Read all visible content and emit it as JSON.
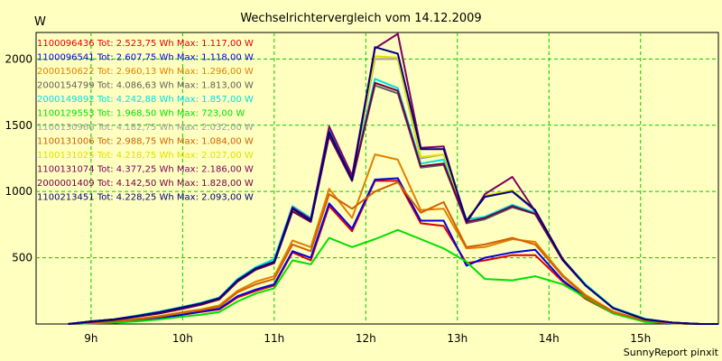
{
  "chart_data": {
    "type": "line",
    "title": "Wechselrichtervergleich vom 14.12.2009",
    "ylabel": "W",
    "xlabel": "",
    "footer": "SunnyReport pinxit",
    "x_range": [
      8.4,
      15.85
    ],
    "ylim": [
      0,
      2200
    ],
    "y_ticks": [
      500,
      1000,
      1500,
      2000
    ],
    "x_ticks": [
      "9h",
      "10h",
      "11h",
      "12h",
      "13h",
      "14h",
      "15h"
    ],
    "x_tick_values": [
      9,
      10,
      11,
      12,
      13,
      14,
      15
    ],
    "grid": true,
    "legend_position": "top-left",
    "x": [
      8.75,
      9.0,
      9.25,
      9.5,
      9.75,
      10.0,
      10.2,
      10.4,
      10.6,
      10.8,
      11.0,
      11.2,
      11.4,
      11.6,
      11.85,
      12.1,
      12.35,
      12.6,
      12.85,
      13.1,
      13.3,
      13.6,
      13.85,
      14.15,
      14.4,
      14.7,
      15.05,
      15.35,
      15.65,
      15.85
    ],
    "series": [
      {
        "name": "1100096436",
        "text": "Tot: 2.523,75 Wh Max: 1.117,00 W",
        "color": "#e00000",
        "values": [
          0,
          5,
          10,
          25,
          45,
          70,
          90,
          110,
          200,
          250,
          290,
          540,
          480,
          890,
          700,
          1080,
          1080,
          760,
          740,
          460,
          480,
          520,
          520,
          320,
          190,
          80,
          20,
          5,
          0,
          0
        ]
      },
      {
        "name": "1100096541",
        "text": "Tot: 2.607,75 Wh Max: 1.118,00 W",
        "color": "#0000e0",
        "values": [
          0,
          5,
          10,
          25,
          45,
          70,
          95,
          115,
          210,
          260,
          300,
          550,
          500,
          910,
          720,
          1090,
          1100,
          780,
          780,
          440,
          500,
          540,
          560,
          330,
          200,
          85,
          20,
          5,
          0,
          0
        ]
      },
      {
        "name": "2000150622",
        "text": "Tot: 2.960,13 Wh Max: 1.296,00 W",
        "color": "#e08000",
        "values": [
          0,
          10,
          20,
          40,
          60,
          90,
          110,
          140,
          250,
          320,
          360,
          630,
          580,
          1020,
          800,
          1280,
          1240,
          860,
          870,
          570,
          580,
          640,
          620,
          370,
          220,
          95,
          25,
          5,
          0,
          0
        ]
      },
      {
        "name": "2000154799",
        "text": "Tot: 4.086,63 Wh Max: 1.813,00 W",
        "color": "#606060",
        "values": [
          0,
          15,
          30,
          55,
          80,
          115,
          145,
          185,
          320,
          410,
          460,
          850,
          770,
          1420,
          1080,
          1800,
          1740,
          1180,
          1200,
          760,
          790,
          880,
          830,
          480,
          290,
          120,
          35,
          10,
          0,
          0
        ]
      },
      {
        "name": "2000149892",
        "text": "Tot: 4.242,88 Wh Max: 1.857,00 W",
        "color": "#00e0e0",
        "values": [
          0,
          20,
          35,
          65,
          95,
          130,
          160,
          200,
          340,
          430,
          490,
          890,
          800,
          1460,
          1100,
          1850,
          1780,
          1210,
          1240,
          790,
          810,
          900,
          840,
          490,
          300,
          125,
          40,
          10,
          0,
          0
        ]
      },
      {
        "name": "1100129553",
        "text": "Tot: 1.968,50 Wh Max: 723,00 W",
        "color": "#00e000",
        "values": [
          0,
          5,
          10,
          20,
          35,
          55,
          70,
          90,
          170,
          230,
          270,
          480,
          450,
          650,
          580,
          640,
          710,
          640,
          570,
          470,
          340,
          330,
          360,
          300,
          200,
          80,
          15,
          5,
          0,
          0
        ]
      },
      {
        "name": "1100130966",
        "text": "Tot: 4.182,75 Wh Max: 2.032,00 W",
        "color": "#a0a0a0",
        "values": [
          0,
          20,
          35,
          60,
          90,
          125,
          155,
          195,
          330,
          420,
          470,
          870,
          780,
          1440,
          1090,
          2000,
          2000,
          1250,
          1280,
          780,
          960,
          1000,
          850,
          490,
          290,
          120,
          35,
          10,
          0,
          0
        ]
      },
      {
        "name": "1100131006",
        "text": "Tot: 2.988,75 Wh Max: 1.084,00 W",
        "color": "#d06000",
        "values": [
          0,
          10,
          20,
          35,
          55,
          85,
          105,
          130,
          240,
          300,
          340,
          600,
          550,
          980,
          870,
          1000,
          1070,
          840,
          920,
          580,
          600,
          650,
          600,
          360,
          210,
          90,
          25,
          5,
          0,
          0
        ]
      },
      {
        "name": "1100131025",
        "text": "Tot: 4.218,75 Wh Max: 2.027,00 W",
        "color": "#e0e000",
        "values": [
          0,
          20,
          35,
          60,
          90,
          125,
          155,
          195,
          330,
          420,
          470,
          870,
          780,
          1440,
          1090,
          2020,
          2010,
          1260,
          1280,
          780,
          970,
          1010,
          860,
          490,
          290,
          120,
          35,
          10,
          0,
          0
        ]
      },
      {
        "name": "1100131074",
        "text": "Tot: 4.377,25 Wh Max: 2.186,00 W",
        "color": "#800060",
        "values": [
          0,
          20,
          35,
          60,
          90,
          125,
          155,
          195,
          330,
          420,
          470,
          880,
          790,
          1490,
          1120,
          2080,
          2190,
          1330,
          1340,
          760,
          980,
          1110,
          850,
          490,
          290,
          120,
          35,
          10,
          0,
          0
        ]
      },
      {
        "name": "2000001409",
        "text": "Tot: 4.142,50 Wh Max: 1.828,00 W",
        "color": "#700040",
        "values": [
          0,
          15,
          30,
          55,
          80,
          115,
          145,
          185,
          320,
          410,
          460,
          850,
          770,
          1420,
          1080,
          1820,
          1760,
          1190,
          1210,
          770,
          800,
          890,
          830,
          480,
          290,
          120,
          35,
          10,
          0,
          0
        ]
      },
      {
        "name": "1100213451",
        "text": "Tot: 4.228,25 Wh Max: 2.093,00 W",
        "color": "#000080",
        "values": [
          0,
          20,
          35,
          60,
          90,
          125,
          155,
          195,
          330,
          420,
          470,
          870,
          780,
          1450,
          1090,
          2090,
          2040,
          1320,
          1320,
          780,
          960,
          1000,
          860,
          490,
          290,
          120,
          35,
          10,
          0,
          0
        ]
      }
    ]
  }
}
